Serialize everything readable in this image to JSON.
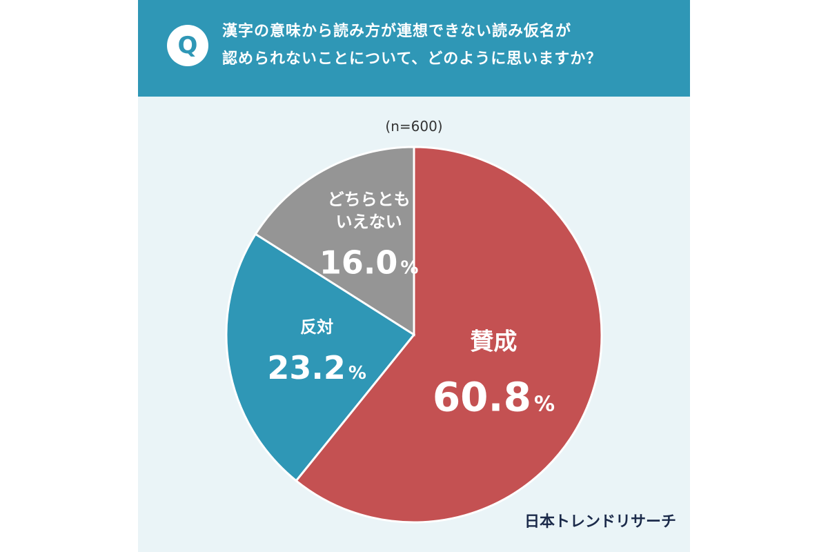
{
  "question": {
    "badge": "Q",
    "line1": "漢字の意味から読み方が連想できない読み仮名が",
    "line2": "認められないことについて、どのように思いますか？"
  },
  "chart_data": {
    "type": "pie",
    "sample_size_label": "(n=600)",
    "start_angle_deg": 0,
    "direction": "clockwise",
    "slices": [
      {
        "label": "賛成",
        "value": 60.8,
        "value_text": "60.8",
        "unit": "%",
        "color": "#c45152"
      },
      {
        "label": "反対",
        "value": 23.2,
        "value_text": "23.2",
        "unit": "%",
        "color": "#2f97b6"
      },
      {
        "label": "どちらとも\nいえない",
        "label_lines": [
          "どちらとも",
          "いえない"
        ],
        "value": 16.0,
        "value_text": "16.0",
        "unit": "%",
        "color": "#959595"
      }
    ]
  },
  "brand": "日本トレンドリサーチ",
  "colors": {
    "header": "#2f97b6",
    "background": "#eaf4f7",
    "agree": "#c45152",
    "disagree": "#2f97b6",
    "neutral": "#959595"
  }
}
